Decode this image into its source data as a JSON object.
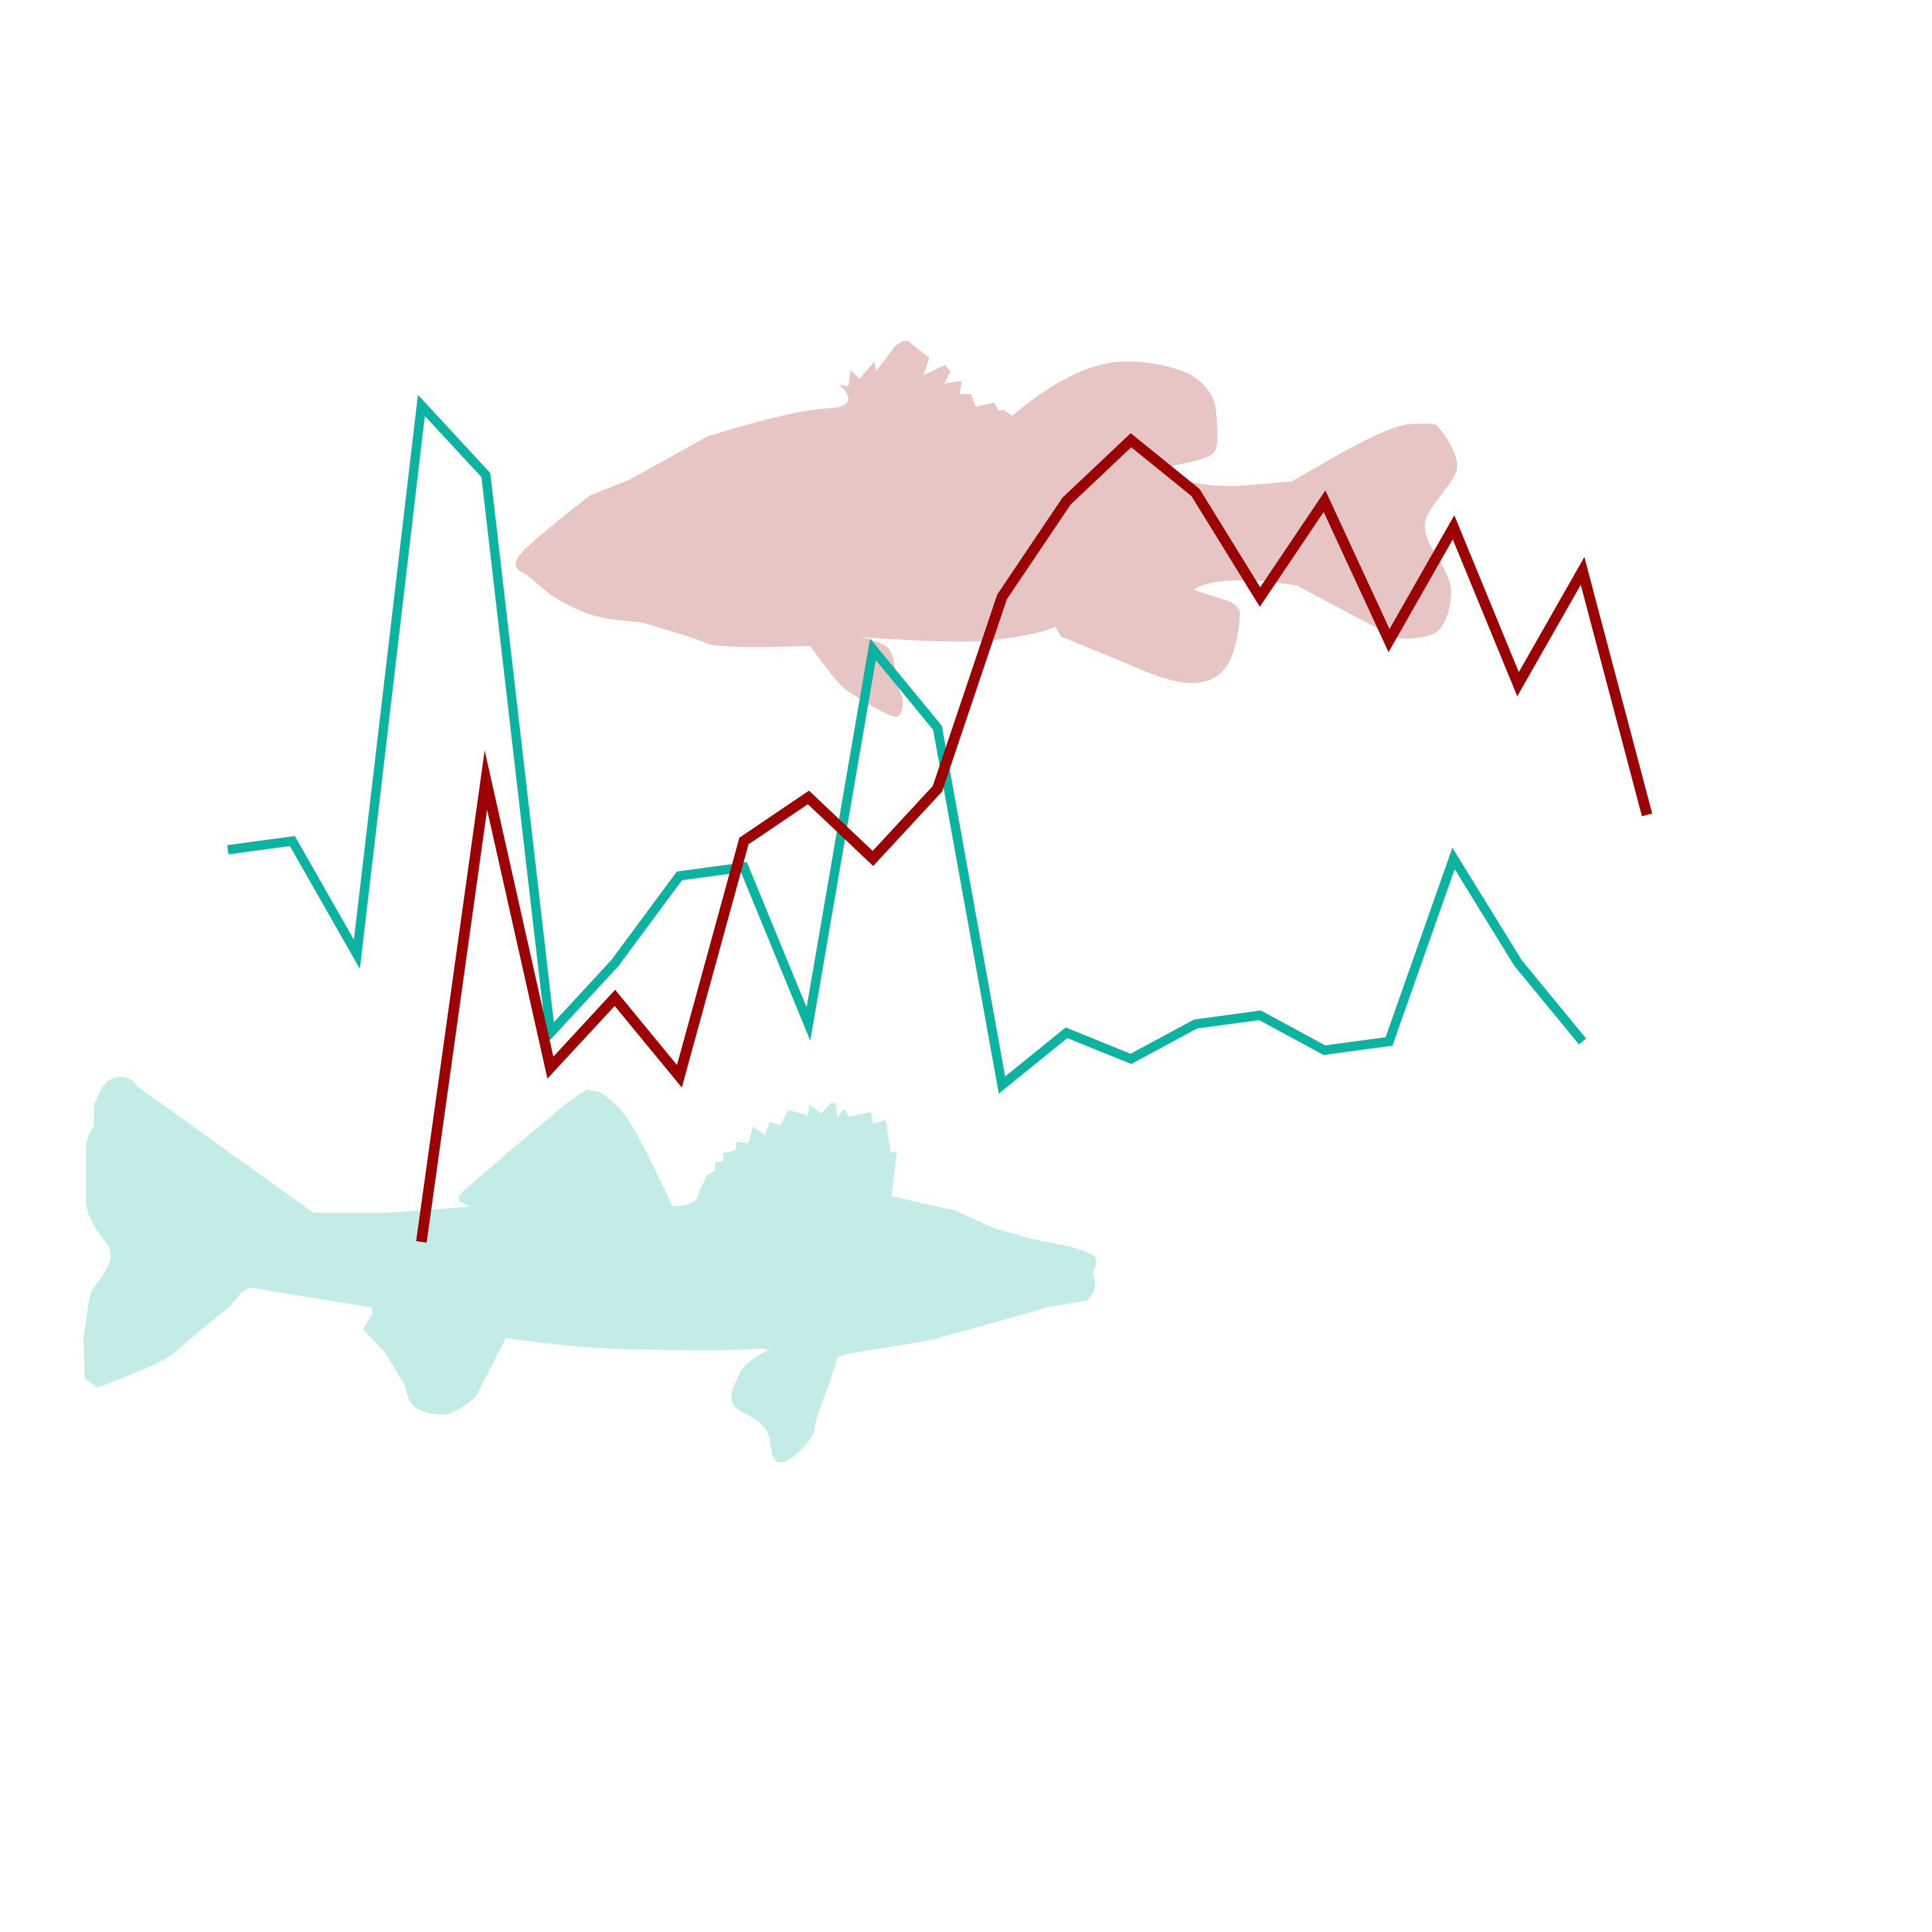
{
  "chart_data": {
    "type": "line",
    "title": "",
    "xlabel": "",
    "ylabel": "",
    "axes_visible": false,
    "grid": false,
    "legend": "none",
    "series": [
      {
        "color": "#0bb3a0",
        "start_index": 0,
        "values": [
          41,
          42,
          29,
          92,
          84,
          20,
          28,
          38,
          39,
          21,
          64,
          55,
          14,
          20,
          17,
          21,
          22,
          18,
          19,
          40,
          28,
          19
        ]
      },
      {
        "color": "#9b0204",
        "start_index": 3,
        "values": [
          -4,
          49,
          16,
          24,
          15,
          42,
          47,
          40,
          48,
          70,
          81,
          88,
          82,
          70,
          81,
          65,
          78,
          60,
          73,
          45
        ]
      }
    ],
    "decorations": [
      {
        "name": "bass-silhouette",
        "color": "#e7c5c4"
      },
      {
        "name": "walleye-silhouette",
        "color": "#c3ece6"
      }
    ]
  }
}
